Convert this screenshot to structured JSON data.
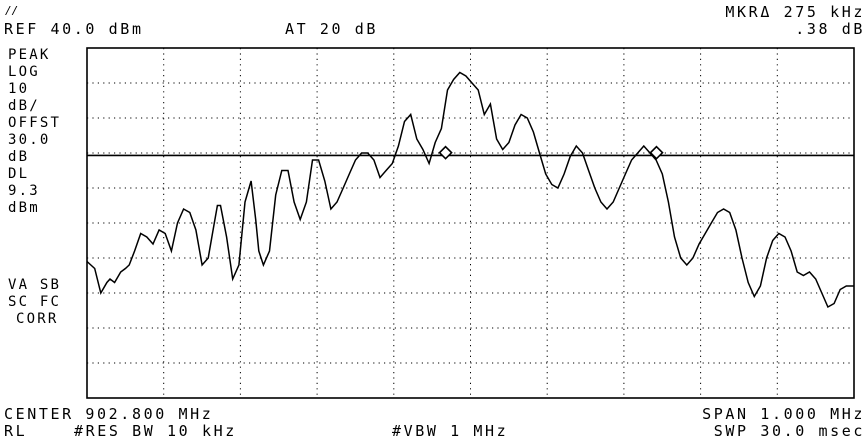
{
  "header": {
    "ref_level": "REF 40.0 dBm",
    "attenuation": "AT 20 dB",
    "marker_label": "MKRΔ 275 kHz",
    "marker_value": ".38 dB"
  },
  "left_annotations": {
    "detector": "PEAK",
    "scale_type": "LOG",
    "scale_value": "10",
    "scale_unit": "dB/",
    "offset_label": "OFFST",
    "offset_value": "30.0",
    "offset_unit": "dB",
    "display_line_label": "DL",
    "display_line_value": "9.3",
    "display_line_unit": "dBm",
    "trace_modes_1": "VA SB",
    "trace_modes_2": "SC FC",
    "correction": "CORR"
  },
  "footer": {
    "center": "CENTER 902.800 MHz",
    "span": "SPAN 1.000 MHz",
    "rl": "RL",
    "res_bw": "#RES BW 10 kHz",
    "vbw": "#VBW 1 MHz",
    "sweep": "SWP 30.0 msec"
  },
  "chart_data": {
    "type": "line",
    "x_center_mhz": 902.8,
    "x_span_mhz": 1.0,
    "xlim": [
      902.3,
      903.3
    ],
    "ylim": [
      -60,
      40
    ],
    "y_units": "dBm",
    "grid": true,
    "display_line_dbm": 9.3,
    "markers": [
      {
        "x": 902.7675,
        "y": 10.1
      },
      {
        "x": 903.0425,
        "y": 10.1
      }
    ],
    "series": [
      {
        "x": [
          902.3,
          902.31,
          902.318,
          902.326,
          902.33,
          902.336,
          902.344,
          902.35,
          902.355,
          902.362,
          902.37,
          902.378,
          902.386,
          902.394,
          902.402,
          902.41,
          902.418,
          902.426,
          902.434,
          902.442,
          902.45,
          902.458,
          902.466,
          902.47,
          902.474,
          902.482,
          902.49,
          902.498,
          902.506,
          902.514,
          902.52,
          902.524,
          902.53,
          902.538,
          902.546,
          902.554,
          902.562,
          902.57,
          902.578,
          902.586,
          902.594,
          902.602,
          902.61,
          902.618,
          902.626,
          902.634,
          902.642,
          902.65,
          902.658,
          902.666,
          902.674,
          902.682,
          902.69,
          902.698,
          902.706,
          902.714,
          902.722,
          902.73,
          902.738,
          902.746,
          902.754,
          902.762,
          902.77,
          902.778,
          902.786,
          902.794,
          902.802,
          902.81,
          902.818,
          902.826,
          902.834,
          902.842,
          902.85,
          902.858,
          902.866,
          902.874,
          902.882,
          902.89,
          902.898,
          902.906,
          902.914,
          902.922,
          902.93,
          902.938,
          902.946,
          902.954,
          902.962,
          902.97,
          902.978,
          902.986,
          902.994,
          903.002,
          903.01,
          903.018,
          903.026,
          903.034,
          903.042,
          903.05,
          903.058,
          903.066,
          903.074,
          903.082,
          903.09,
          903.098,
          903.106,
          903.114,
          903.122,
          903.13,
          903.138,
          903.146,
          903.154,
          903.162,
          903.17,
          903.178,
          903.186,
          903.194,
          903.202,
          903.21,
          903.218,
          903.226,
          903.234,
          903.242,
          903.25,
          903.258,
          903.266,
          903.274,
          903.282,
          903.29,
          903.3
        ],
        "y": [
          -21,
          -23,
          -30,
          -27,
          -26,
          -27,
          -24,
          -23,
          -22,
          -18,
          -13,
          -14,
          -16,
          -12,
          -13,
          -18,
          -10,
          -6,
          -7,
          -12,
          -22,
          -20,
          -10,
          -5,
          -5,
          -14,
          -26,
          -22,
          -4,
          2,
          -9,
          -18,
          -22,
          -18,
          -2,
          5,
          5,
          -4,
          -9,
          -4,
          8,
          8,
          2,
          -6,
          -4,
          0,
          4,
          8,
          10,
          10,
          8,
          3,
          5,
          7,
          12,
          19,
          21,
          14,
          11,
          7,
          13,
          17,
          28,
          31,
          33,
          32,
          30,
          28,
          21,
          24,
          14,
          11,
          13,
          18,
          21,
          20,
          16,
          10,
          4,
          1,
          0,
          4,
          9,
          12,
          10,
          5,
          0,
          -4,
          -6,
          -4,
          0,
          4,
          8,
          10,
          12,
          10,
          8,
          4,
          -4,
          -14,
          -20,
          -22,
          -20,
          -16,
          -13,
          -10,
          -7,
          -6,
          -7,
          -12,
          -20,
          -27,
          -31,
          -28,
          -20,
          -15,
          -13,
          -14,
          -18,
          -24,
          -25,
          -24,
          -26,
          -30,
          -34,
          -33,
          -29,
          -28,
          -28
        ]
      }
    ]
  }
}
